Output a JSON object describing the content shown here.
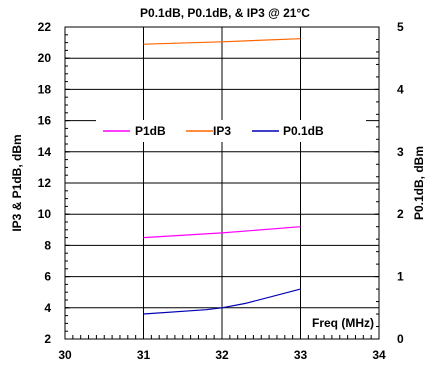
{
  "chart_data": {
    "type": "line",
    "title": "P0.1dB, P0.1dB, & IP3 @ 21°C",
    "xlabel": "Freq (MHz)",
    "ylabel_left": "IP3 & P1dB, dBm",
    "ylabel_right": "P0.1dB, dBm",
    "xlim": [
      30,
      34
    ],
    "ylim_left": [
      2,
      22
    ],
    "ylim_right": [
      0,
      5
    ],
    "x_ticks": [
      "30",
      "31",
      "32",
      "33",
      "34"
    ],
    "y_left_ticks": [
      "2",
      "4",
      "6",
      "8",
      "10",
      "12",
      "14",
      "16",
      "18",
      "20",
      "22"
    ],
    "y_right_ticks": [
      "0",
      "1",
      "2",
      "3",
      "4",
      "5"
    ],
    "grid": true,
    "legend_position": "center",
    "series": [
      {
        "name": "P1dB",
        "axis": "left",
        "color": "#ff00ff",
        "x": [
          31,
          32,
          33
        ],
        "y": [
          8.5,
          8.8,
          9.2
        ]
      },
      {
        "name": "IP3",
        "axis": "left",
        "color": "#ff6600",
        "x": [
          31,
          32,
          33
        ],
        "y": [
          20.9,
          21.05,
          21.25
        ]
      },
      {
        "name": "P0.1dB",
        "axis": "right",
        "color": "#0000b3",
        "x": [
          31,
          31.8,
          32,
          32.3,
          33
        ],
        "y": [
          0.4,
          0.47,
          0.5,
          0.57,
          0.8
        ]
      }
    ]
  }
}
